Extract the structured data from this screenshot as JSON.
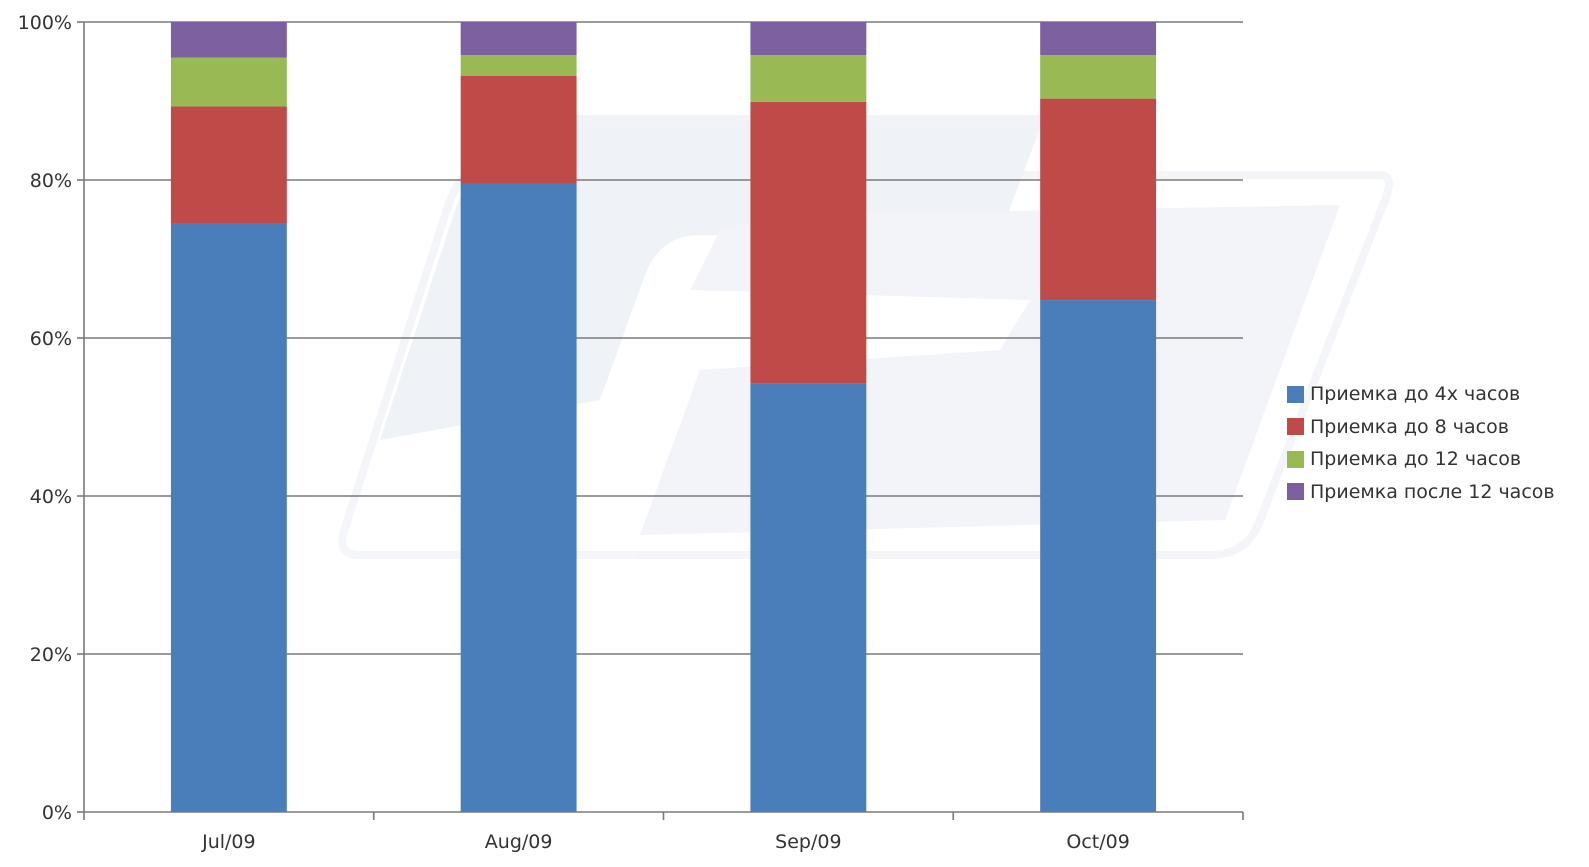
{
  "chart_data": {
    "type": "bar",
    "stacked": true,
    "title": "",
    "xlabel": "",
    "ylabel": "",
    "ylim": [
      0,
      100
    ],
    "yticks": [
      "0%",
      "20%",
      "40%",
      "60%",
      "80%",
      "100%"
    ],
    "grid": true,
    "legend_position": "right",
    "categories": [
      "Jul/09",
      "Aug/09",
      "Sep/09",
      "Oct/09"
    ],
    "series": [
      {
        "name": "Приемка до  4х часов",
        "color": "#4a7ebb",
        "values": [
          74.5,
          79.5,
          54.2,
          64.8
        ]
      },
      {
        "name": "Приемка до  8 часов",
        "color": "#be4b48",
        "values": [
          14.8,
          13.7,
          35.7,
          25.5
        ]
      },
      {
        "name": "Приемка до 12 часов",
        "color": "#98b954",
        "values": [
          6.2,
          2.6,
          5.9,
          5.5
        ]
      },
      {
        "name": "Приемка после 12 часов",
        "color": "#7d60a0",
        "values": [
          4.5,
          4.2,
          4.2,
          4.2
        ]
      }
    ]
  }
}
